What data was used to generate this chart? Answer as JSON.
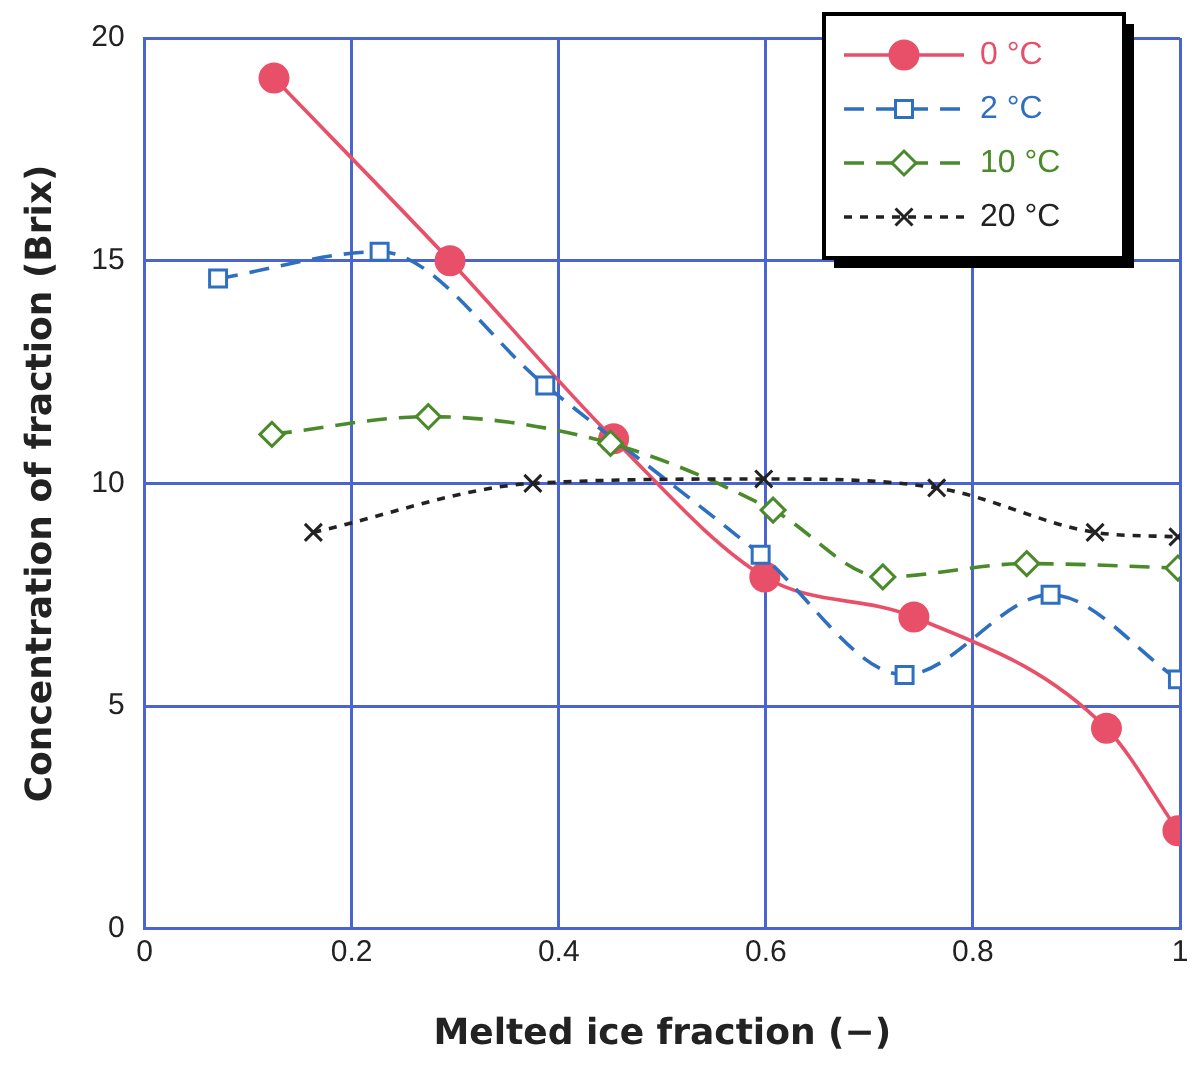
{
  "chart_data": {
    "type": "line",
    "xlabel": "Melted ice fraction (−)",
    "ylabel": "Concentration of fraction (Brix)",
    "xlim": [
      0,
      1
    ],
    "xticks": [
      0,
      0.2,
      0.4,
      0.6,
      0.8,
      1
    ],
    "ylim": [
      0,
      20
    ],
    "yticks": [
      0,
      5,
      10,
      15,
      20
    ],
    "grid": true,
    "legend": "top right",
    "series": [
      {
        "name": "0 °C",
        "color": "#e8506a",
        "marker": "circle",
        "line_style": "solid",
        "x": [
          0.125,
          0.295,
          0.453,
          0.599,
          0.743,
          0.929,
          0.998
        ],
        "values": [
          19.1,
          15.0,
          11.0,
          7.9,
          7.0,
          4.5,
          2.2
        ]
      },
      {
        "name": "2 °C",
        "color": "#2f6fc0",
        "marker": "square",
        "line_style": "dashed",
        "x": [
          0.071,
          0.227,
          0.387,
          0.595,
          0.734,
          0.875,
          0.998
        ],
        "values": [
          14.6,
          15.2,
          12.2,
          8.4,
          5.7,
          7.5,
          5.6
        ]
      },
      {
        "name": "10 °C",
        "color": "#4a8a2a",
        "marker": "diamond",
        "line_style": "dashed",
        "x": [
          0.123,
          0.274,
          0.45,
          0.607,
          0.713,
          0.852,
          0.998
        ],
        "values": [
          11.1,
          11.5,
          10.9,
          9.4,
          7.9,
          8.2,
          8.1
        ]
      },
      {
        "name": "20 °C",
        "color": "#222222",
        "marker": "cross",
        "line_style": "dotted",
        "x": [
          0.163,
          0.375,
          0.598,
          0.765,
          0.918,
          0.998
        ],
        "values": [
          8.9,
          10.0,
          10.1,
          9.9,
          8.9,
          8.8
        ]
      }
    ]
  }
}
